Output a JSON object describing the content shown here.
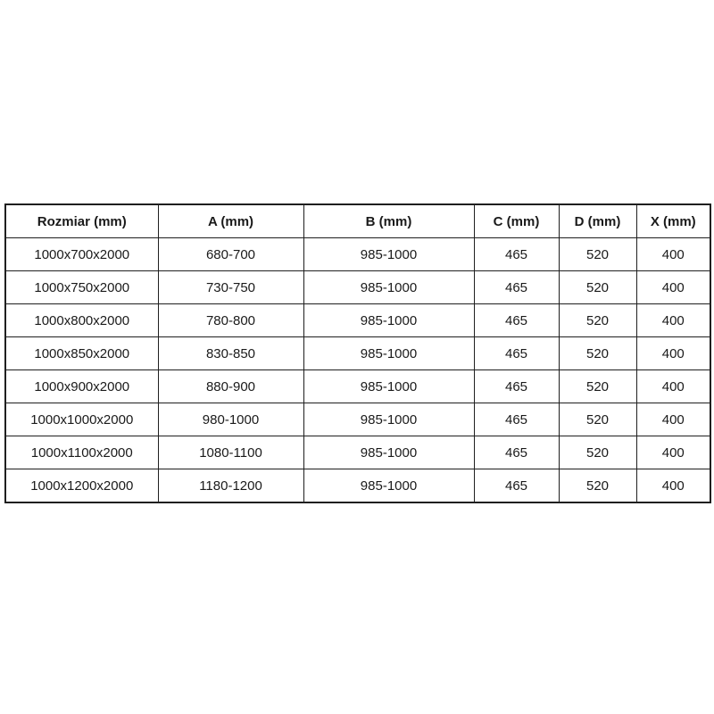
{
  "page": {
    "background_color": "#ffffff",
    "text_color": "#1a1a1a",
    "border_color": "#1f1f1f"
  },
  "chart_data": {
    "type": "table",
    "title": "",
    "columns": [
      "Rozmiar (mm)",
      "A (mm)",
      "B (mm)",
      "C (mm)",
      "D (mm)",
      "X (mm)"
    ],
    "rows": [
      [
        "1000x700x2000",
        "680-700",
        "985-1000",
        "465",
        "520",
        "400"
      ],
      [
        "1000x750x2000",
        "730-750",
        "985-1000",
        "465",
        "520",
        "400"
      ],
      [
        "1000x800x2000",
        "780-800",
        "985-1000",
        "465",
        "520",
        "400"
      ],
      [
        "1000x850x2000",
        "830-850",
        "985-1000",
        "465",
        "520",
        "400"
      ],
      [
        "1000x900x2000",
        "880-900",
        "985-1000",
        "465",
        "520",
        "400"
      ],
      [
        "1000x1000x2000",
        "980-1000",
        "985-1000",
        "465",
        "520",
        "400"
      ],
      [
        "1000x1100x2000",
        "1080-1100",
        "985-1000",
        "465",
        "520",
        "400"
      ],
      [
        "1000x1200x2000",
        "1180-1200",
        "985-1000",
        "465",
        "520",
        "400"
      ]
    ],
    "layout": {
      "header_bold": true,
      "grid": "all-borders",
      "cell_alignment": "center"
    }
  }
}
